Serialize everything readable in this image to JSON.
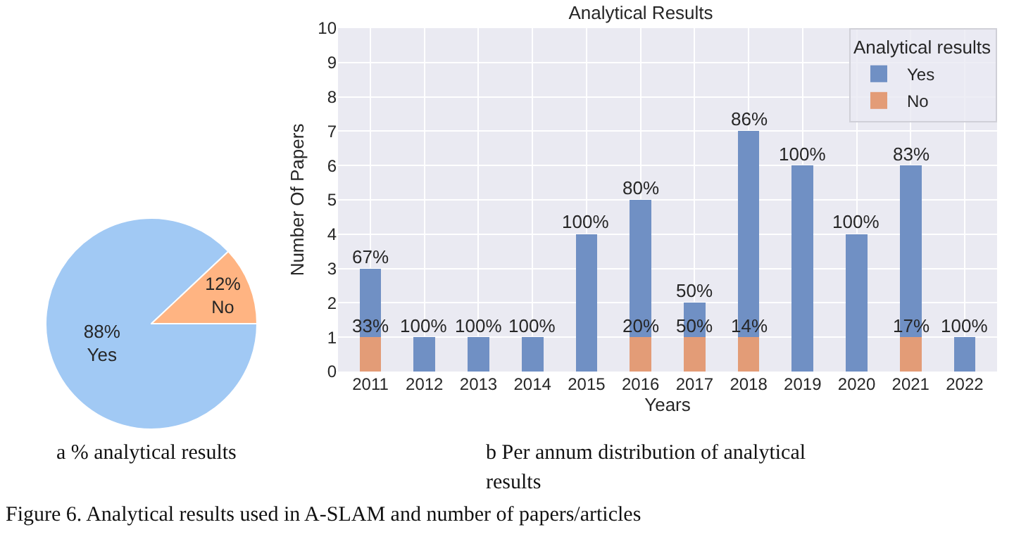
{
  "chart_data": [
    {
      "type": "pie",
      "categories": [
        "Yes",
        "No"
      ],
      "values": [
        88,
        12
      ],
      "colors": [
        "#a1c9f4",
        "#ffb482"
      ],
      "value_labels": [
        "88%",
        "12%"
      ],
      "legend": false,
      "annotations": [
        "a % analytical results"
      ]
    },
    {
      "type": "bar",
      "title": "Analytical Results",
      "xlabel": "Years",
      "ylabel": "Number Of Papers",
      "legend_title": "Analytical results",
      "categories": [
        "2011",
        "2012",
        "2013",
        "2014",
        "2015",
        "2016",
        "2017",
        "2018",
        "2019",
        "2020",
        "2021",
        "2022"
      ],
      "stacked": true,
      "series": [
        {
          "name": "No",
          "color": "#e39c77",
          "values": [
            1,
            null,
            null,
            null,
            null,
            1,
            1,
            1,
            null,
            null,
            1,
            null
          ]
        },
        {
          "name": "Yes",
          "color": "#7090c4",
          "values": [
            2,
            1,
            1,
            1,
            4,
            4,
            1,
            6,
            6,
            4,
            5,
            1
          ]
        }
      ],
      "ylim": [
        0,
        10
      ],
      "yticks": [
        0,
        1,
        2,
        3,
        4,
        5,
        6,
        7,
        8,
        9,
        10
      ],
      "grid": true,
      "legend": "top right",
      "annotations": [
        {
          "text": "67%",
          "x": "2011",
          "y": 3
        },
        {
          "text": "33%",
          "x": "2011",
          "y": 1
        },
        {
          "text": "100%",
          "x": "2012",
          "y": 1
        },
        {
          "text": "100%",
          "x": "2013",
          "y": 1
        },
        {
          "text": "100%",
          "x": "2014",
          "y": 1
        },
        {
          "text": "100%",
          "x": "2015",
          "y": 4
        },
        {
          "text": "80%",
          "x": "2016",
          "y": 5
        },
        {
          "text": "20%",
          "x": "2016",
          "y": 1
        },
        {
          "text": "50%",
          "x": "2017",
          "y": 2
        },
        {
          "text": "50%",
          "x": "2017",
          "y": 1
        },
        {
          "text": "86%",
          "x": "2018",
          "y": 7
        },
        {
          "text": "14%",
          "x": "2018",
          "y": 1
        },
        {
          "text": "100%",
          "x": "2019",
          "y": 6
        },
        {
          "text": "100%",
          "x": "2020",
          "y": 4
        },
        {
          "text": "83%",
          "x": "2021",
          "y": 6
        },
        {
          "text": "17%",
          "x": "2021",
          "y": 1
        },
        {
          "text": "100%",
          "x": "2022",
          "y": 1
        },
        "b Per annum distribution of analytical results",
        "Figure 6. Analytical results used in A-SLAM and number of papers/articles"
      ]
    }
  ]
}
